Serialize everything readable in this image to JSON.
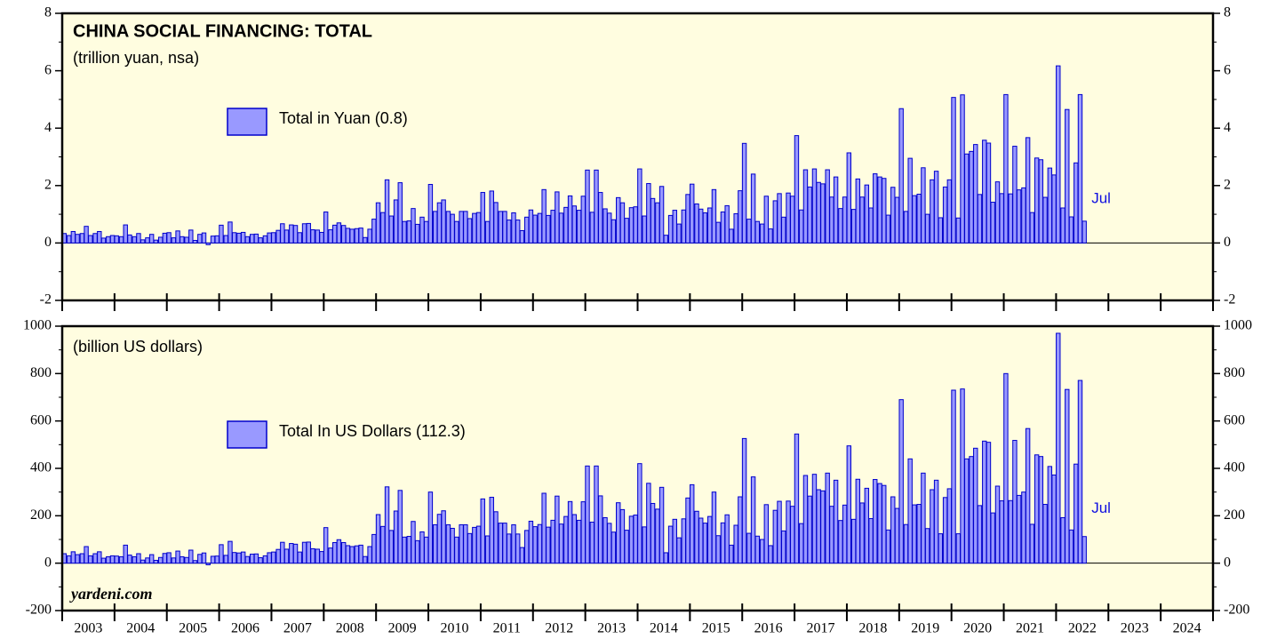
{
  "chart_data": [
    {
      "type": "bar",
      "title": "CHINA SOCIAL FINANCING: TOTAL",
      "subtitle": "(trillion yuan, nsa)",
      "annotation": "Jul",
      "ylim": [
        -2,
        8
      ],
      "yticks": [
        -2,
        0,
        2,
        4,
        6,
        8
      ],
      "xlim": [
        2003,
        2025
      ],
      "xticks": [
        2003,
        2004,
        2005,
        2006,
        2007,
        2008,
        2009,
        2010,
        2011,
        2012,
        2013,
        2014,
        2015,
        2016,
        2017,
        2018,
        2019,
        2020,
        2021,
        2022,
        2023,
        2024,
        2025
      ],
      "x": [
        2003.04,
        2003.13,
        2003.21,
        2003.29,
        2003.38,
        2003.46,
        2003.54,
        2003.63,
        2003.71,
        2003.79,
        2003.88,
        2003.96,
        2004.04,
        2004.13,
        2004.21,
        2004.29,
        2004.38,
        2004.46,
        2004.54,
        2004.63,
        2004.71,
        2004.79,
        2004.88,
        2004.96,
        2005.04,
        2005.13,
        2005.21,
        2005.29,
        2005.38,
        2005.46,
        2005.54,
        2005.63,
        2005.71,
        2005.79,
        2005.88,
        2005.96,
        2006.04,
        2006.13,
        2006.21,
        2006.29,
        2006.38,
        2006.46,
        2006.54,
        2006.63,
        2006.71,
        2006.79,
        2006.88,
        2006.96,
        2007.04,
        2007.13,
        2007.21,
        2007.29,
        2007.38,
        2007.46,
        2007.54,
        2007.63,
        2007.71,
        2007.79,
        2007.88,
        2007.96,
        2008.04,
        2008.13,
        2008.21,
        2008.29,
        2008.38,
        2008.46,
        2008.54,
        2008.63,
        2008.71,
        2008.79,
        2008.88,
        2008.96,
        2009.04,
        2009.13,
        2009.21,
        2009.29,
        2009.38,
        2009.46,
        2009.54,
        2009.63,
        2009.71,
        2009.79,
        2009.88,
        2009.96,
        2010.04,
        2010.13,
        2010.21,
        2010.29,
        2010.38,
        2010.46,
        2010.54,
        2010.63,
        2010.71,
        2010.79,
        2010.88,
        2010.96,
        2011.04,
        2011.13,
        2011.21,
        2011.29,
        2011.38,
        2011.46,
        2011.54,
        2011.63,
        2011.71,
        2011.79,
        2011.88,
        2011.96,
        2012.04,
        2012.13,
        2012.21,
        2012.29,
        2012.38,
        2012.46,
        2012.54,
        2012.63,
        2012.71,
        2012.79,
        2012.88,
        2012.96,
        2013.04,
        2013.13,
        2013.21,
        2013.29,
        2013.38,
        2013.46,
        2013.54,
        2013.63,
        2013.71,
        2013.79,
        2013.88,
        2013.96,
        2014.04,
        2014.13,
        2014.21,
        2014.29,
        2014.38,
        2014.46,
        2014.54,
        2014.63,
        2014.71,
        2014.79,
        2014.88,
        2014.96,
        2015.04,
        2015.13,
        2015.21,
        2015.29,
        2015.38,
        2015.46,
        2015.54,
        2015.63,
        2015.71,
        2015.79,
        2015.88,
        2015.96,
        2016.04,
        2016.13,
        2016.21,
        2016.29,
        2016.38,
        2016.46,
        2016.54,
        2016.63,
        2016.71,
        2016.79,
        2016.88,
        2016.96,
        2017.04,
        2017.13,
        2017.21,
        2017.29,
        2017.38,
        2017.46,
        2017.54,
        2017.63,
        2017.71,
        2017.79,
        2017.88,
        2017.96,
        2018.04,
        2018.13,
        2018.21,
        2018.29,
        2018.38,
        2018.46,
        2018.54,
        2018.63,
        2018.71,
        2018.79,
        2018.88,
        2018.96,
        2019.04,
        2019.13,
        2019.21,
        2019.29,
        2019.38,
        2019.46,
        2019.54,
        2019.63,
        2019.71,
        2019.79,
        2019.88,
        2019.96,
        2020.04,
        2020.13,
        2020.21,
        2020.29,
        2020.38,
        2020.46,
        2020.54,
        2020.63,
        2020.71,
        2020.79,
        2020.88,
        2020.96,
        2021.04,
        2021.13,
        2021.21,
        2021.29,
        2021.38,
        2021.46,
        2021.54,
        2021.63,
        2021.71,
        2021.79,
        2021.88,
        2021.96,
        2022.04,
        2022.13,
        2022.21,
        2022.29,
        2022.38,
        2022.46,
        2022.54
      ],
      "series": [
        {
          "name": "Total in Yuan (0.8)",
          "color": "#9999ff",
          "edgecolor": "#0000cc",
          "values": [
            0.33,
            0.26,
            0.4,
            0.3,
            0.33,
            0.58,
            0.26,
            0.33,
            0.4,
            0.17,
            0.22,
            0.26,
            0.25,
            0.22,
            0.63,
            0.28,
            0.22,
            0.33,
            0.11,
            0.18,
            0.3,
            0.1,
            0.2,
            0.34,
            0.36,
            0.18,
            0.42,
            0.22,
            0.2,
            0.45,
            0.09,
            0.3,
            0.35,
            -0.06,
            0.24,
            0.25,
            0.62,
            0.26,
            0.73,
            0.36,
            0.34,
            0.37,
            0.22,
            0.3,
            0.31,
            0.18,
            0.25,
            0.35,
            0.36,
            0.44,
            0.67,
            0.45,
            0.63,
            0.61,
            0.36,
            0.67,
            0.68,
            0.46,
            0.45,
            0.37,
            1.08,
            0.46,
            0.62,
            0.7,
            0.61,
            0.51,
            0.48,
            0.5,
            0.52,
            0.19,
            0.48,
            0.83,
            1.4,
            1.06,
            2.2,
            0.94,
            1.5,
            2.1,
            0.75,
            0.77,
            1.2,
            0.65,
            0.9,
            0.75,
            2.04,
            1.1,
            1.4,
            1.5,
            1.1,
            1.0,
            0.75,
            1.1,
            1.1,
            0.85,
            1.03,
            1.06,
            1.76,
            0.75,
            1.81,
            1.41,
            1.1,
            1.1,
            0.8,
            1.05,
            0.8,
            0.43,
            0.9,
            1.15,
            0.97,
            1.03,
            1.86,
            0.96,
            1.14,
            1.78,
            1.04,
            1.24,
            1.64,
            1.29,
            1.14,
            1.63,
            2.54,
            1.07,
            2.54,
            1.76,
            1.19,
            1.04,
            0.81,
            1.58,
            1.4,
            0.86,
            1.23,
            1.26,
            2.58,
            0.94,
            2.07,
            1.55,
            1.4,
            1.97,
            0.27,
            0.96,
            1.14,
            0.66,
            1.15,
            1.69,
            2.05,
            1.36,
            1.18,
            1.05,
            1.22,
            1.86,
            0.72,
            1.08,
            1.3,
            0.48,
            1.02,
            1.82,
            3.47,
            0.83,
            2.4,
            0.75,
            0.66,
            1.63,
            0.49,
            1.47,
            1.72,
            0.9,
            1.74,
            1.63,
            3.74,
            1.15,
            2.55,
            1.95,
            2.58,
            2.11,
            2.06,
            2.55,
            1.6,
            2.3,
            1.2,
            1.6,
            3.14,
            1.17,
            2.23,
            1.6,
            2.02,
            1.22,
            2.41,
            2.3,
            2.25,
            0.97,
            1.94,
            1.59,
            4.68,
            1.1,
            2.95,
            1.65,
            1.7,
            2.62,
            1.0,
            2.2,
            2.5,
            0.88,
            1.95,
            2.2,
            5.07,
            0.87,
            5.16,
            3.1,
            3.19,
            3.43,
            1.69,
            3.58,
            3.48,
            1.42,
            2.13,
            1.72,
            5.17,
            1.71,
            3.37,
            1.85,
            1.92,
            3.67,
            1.06,
            2.96,
            2.9,
            1.59,
            2.61,
            2.37,
            6.17,
            1.22,
            4.65,
            0.91,
            2.79,
            5.17,
            0.76
          ]
        }
      ]
    },
    {
      "type": "bar",
      "subtitle": "(billion US dollars)",
      "annotation": "Jul",
      "source": "yardeni.com",
      "ylim": [
        -200,
        1000
      ],
      "yticks": [
        -200,
        0,
        200,
        400,
        600,
        800,
        1000
      ],
      "xlim": [
        2003,
        2025
      ],
      "xticks": [
        2003,
        2004,
        2005,
        2006,
        2007,
        2008,
        2009,
        2010,
        2011,
        2012,
        2013,
        2014,
        2015,
        2016,
        2017,
        2018,
        2019,
        2020,
        2021,
        2022,
        2023,
        2024,
        2025
      ],
      "xtick_labels": [
        "2003",
        "2004",
        "2005",
        "2006",
        "2007",
        "2008",
        "2009",
        "2010",
        "2011",
        "2012",
        "2013",
        "2014",
        "2015",
        "2016",
        "2017",
        "2018",
        "2019",
        "2020",
        "2021",
        "2022",
        "2023",
        "2024"
      ],
      "x": [
        2003.04,
        2003.13,
        2003.21,
        2003.29,
        2003.38,
        2003.46,
        2003.54,
        2003.63,
        2003.71,
        2003.79,
        2003.88,
        2003.96,
        2004.04,
        2004.13,
        2004.21,
        2004.29,
        2004.38,
        2004.46,
        2004.54,
        2004.63,
        2004.71,
        2004.79,
        2004.88,
        2004.96,
        2005.04,
        2005.13,
        2005.21,
        2005.29,
        2005.38,
        2005.46,
        2005.54,
        2005.63,
        2005.71,
        2005.79,
        2005.88,
        2005.96,
        2006.04,
        2006.13,
        2006.21,
        2006.29,
        2006.38,
        2006.46,
        2006.54,
        2006.63,
        2006.71,
        2006.79,
        2006.88,
        2006.96,
        2007.04,
        2007.13,
        2007.21,
        2007.29,
        2007.38,
        2007.46,
        2007.54,
        2007.63,
        2007.71,
        2007.79,
        2007.88,
        2007.96,
        2008.04,
        2008.13,
        2008.21,
        2008.29,
        2008.38,
        2008.46,
        2008.54,
        2008.63,
        2008.71,
        2008.79,
        2008.88,
        2008.96,
        2009.04,
        2009.13,
        2009.21,
        2009.29,
        2009.38,
        2009.46,
        2009.54,
        2009.63,
        2009.71,
        2009.79,
        2009.88,
        2009.96,
        2010.04,
        2010.13,
        2010.21,
        2010.29,
        2010.38,
        2010.46,
        2010.54,
        2010.63,
        2010.71,
        2010.79,
        2010.88,
        2010.96,
        2011.04,
        2011.13,
        2011.21,
        2011.29,
        2011.38,
        2011.46,
        2011.54,
        2011.63,
        2011.71,
        2011.79,
        2011.88,
        2011.96,
        2012.04,
        2012.13,
        2012.21,
        2012.29,
        2012.38,
        2012.46,
        2012.54,
        2012.63,
        2012.71,
        2012.79,
        2012.88,
        2012.96,
        2013.04,
        2013.13,
        2013.21,
        2013.29,
        2013.38,
        2013.46,
        2013.54,
        2013.63,
        2013.71,
        2013.79,
        2013.88,
        2013.96,
        2014.04,
        2014.13,
        2014.21,
        2014.29,
        2014.38,
        2014.46,
        2014.54,
        2014.63,
        2014.71,
        2014.79,
        2014.88,
        2014.96,
        2015.04,
        2015.13,
        2015.21,
        2015.29,
        2015.38,
        2015.46,
        2015.54,
        2015.63,
        2015.71,
        2015.79,
        2015.88,
        2015.96,
        2016.04,
        2016.13,
        2016.21,
        2016.29,
        2016.38,
        2016.46,
        2016.54,
        2016.63,
        2016.71,
        2016.79,
        2016.88,
        2016.96,
        2017.04,
        2017.13,
        2017.21,
        2017.29,
        2017.38,
        2017.46,
        2017.54,
        2017.63,
        2017.71,
        2017.79,
        2017.88,
        2017.96,
        2018.04,
        2018.13,
        2018.21,
        2018.29,
        2018.38,
        2018.46,
        2018.54,
        2018.63,
        2018.71,
        2018.79,
        2018.88,
        2018.96,
        2019.04,
        2019.13,
        2019.21,
        2019.29,
        2019.38,
        2019.46,
        2019.54,
        2019.63,
        2019.71,
        2019.79,
        2019.88,
        2019.96,
        2020.04,
        2020.13,
        2020.21,
        2020.29,
        2020.38,
        2020.46,
        2020.54,
        2020.63,
        2020.71,
        2020.79,
        2020.88,
        2020.96,
        2021.04,
        2021.13,
        2021.21,
        2021.29,
        2021.38,
        2021.46,
        2021.54,
        2021.63,
        2021.71,
        2021.79,
        2021.88,
        2021.96,
        2022.04,
        2022.13,
        2022.21,
        2022.29,
        2022.38,
        2022.46,
        2022.54
      ],
      "series": [
        {
          "name": "Total In US Dollars (112.3)",
          "color": "#9999ff",
          "edgecolor": "#0000cc",
          "values": [
            40,
            31,
            48,
            36,
            40,
            70,
            31,
            40,
            48,
            21,
            27,
            31,
            30,
            27,
            76,
            34,
            27,
            40,
            13,
            22,
            36,
            12,
            24,
            41,
            44,
            22,
            51,
            27,
            24,
            55,
            11,
            37,
            43,
            -7,
            29,
            30,
            78,
            33,
            92,
            45,
            43,
            47,
            28,
            38,
            39,
            23,
            31,
            44,
            47,
            58,
            88,
            59,
            83,
            80,
            47,
            88,
            89,
            61,
            59,
            49,
            150,
            64,
            87,
            99,
            87,
            74,
            70,
            73,
            76,
            28,
            70,
            121,
            205,
            155,
            322,
            138,
            220,
            307,
            110,
            113,
            176,
            95,
            132,
            110,
            300,
            162,
            206,
            221,
            162,
            147,
            110,
            162,
            162,
            125,
            151,
            156,
            271,
            115,
            278,
            217,
            169,
            169,
            123,
            162,
            123,
            66,
            138,
            177,
            154,
            163,
            295,
            152,
            181,
            283,
            165,
            197,
            260,
            205,
            181,
            259,
            410,
            173,
            410,
            284,
            192,
            168,
            131,
            255,
            226,
            139,
            198,
            203,
            420,
            153,
            337,
            252,
            228,
            320,
            44,
            156,
            185,
            107,
            187,
            275,
            331,
            219,
            190,
            169,
            197,
            300,
            116,
            170,
            204,
            76,
            160,
            280,
            526,
            126,
            364,
            114,
            100,
            247,
            74,
            223,
            261,
            136,
            262,
            240,
            545,
            167,
            370,
            283,
            375,
            310,
            305,
            380,
            240,
            350,
            180,
            245,
            495,
            185,
            354,
            254,
            316,
            188,
            353,
            336,
            328,
            140,
            280,
            231,
            690,
            163,
            440,
            246,
            248,
            380,
            146,
            310,
            350,
            124,
            277,
            314,
            730,
            124,
            735,
            440,
            450,
            485,
            243,
            515,
            510,
            212,
            325,
            263,
            800,
            264,
            518,
            286,
            300,
            568,
            164,
            457,
            450,
            248,
            408,
            372,
            970,
            192,
            733,
            140,
            418,
            771,
            112.3
          ]
        }
      ]
    }
  ]
}
